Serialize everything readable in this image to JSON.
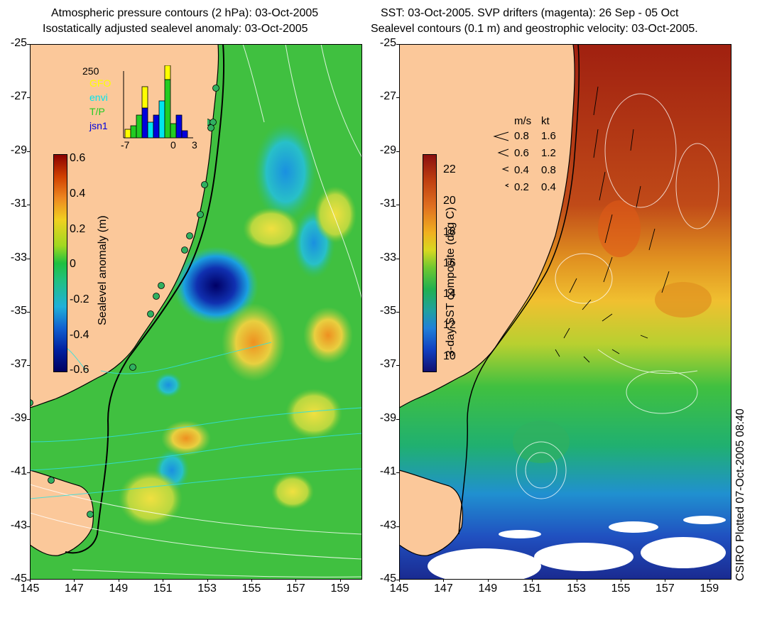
{
  "left": {
    "title_line1": "Atmospheric pressure contours (2 hPa): 03-Oct-2005",
    "title_line2": "Isostatically adjusted sealevel anomaly: 03-Oct-2005",
    "colorbar": {
      "label": "Sealevel anomaly (m)",
      "ticks": [
        "0.6",
        "0.4",
        "0.2",
        "0",
        "-0.2",
        "-0.4",
        "-0.6"
      ],
      "range": [
        -0.6,
        0.6
      ]
    },
    "inset": {
      "ymax_label": "250",
      "x_ticks": [
        "-7",
        "0",
        "3"
      ],
      "series": [
        {
          "name": "GFO",
          "color": "#ffff00"
        },
        {
          "name": "envi",
          "color": "#00e5ee"
        },
        {
          "name": "T/P",
          "color": "#22cc22"
        },
        {
          "name": "jsn1",
          "color": "#0000dd"
        }
      ]
    }
  },
  "right": {
    "title_line1": "SST: 03-Oct-2005. SVP drifters (magenta): 26 Sep - 05 Oct",
    "title_line2": "Sealevel contours (0.1 m) and geostrophic velocity: 03-Oct-2005.",
    "colorbar": {
      "label": "3-day SST composite (deg C)",
      "ticks": [
        "22",
        "20",
        "18",
        "16",
        "14",
        "12",
        "10"
      ],
      "range": [
        9,
        23
      ]
    },
    "speed_legend": {
      "header_ms": "m/s",
      "header_kt": "kt",
      "rows": [
        {
          "ms": "0.8",
          "kt": "1.6"
        },
        {
          "ms": "0.6",
          "kt": "1.2"
        },
        {
          "ms": "0.4",
          "kt": "0.8"
        },
        {
          "ms": "0.2",
          "kt": "0.4"
        }
      ]
    }
  },
  "axes": {
    "y_ticks": [
      "-25",
      "-27",
      "-29",
      "-31",
      "-33",
      "-35",
      "-37",
      "-39",
      "-41",
      "-43",
      "-45"
    ],
    "x_ticks": [
      "145",
      "147",
      "149",
      "151",
      "153",
      "155",
      "157",
      "159"
    ],
    "lat_range": [
      -45,
      -25
    ],
    "lon_range": [
      145,
      160
    ]
  },
  "credit": "CSIRO Plotted 07-Oct-2005 08:40",
  "colors": {
    "land": "#fbc89a",
    "coast": "#000000",
    "contour": "#ffffff",
    "drifters": "#ff00ff"
  }
}
